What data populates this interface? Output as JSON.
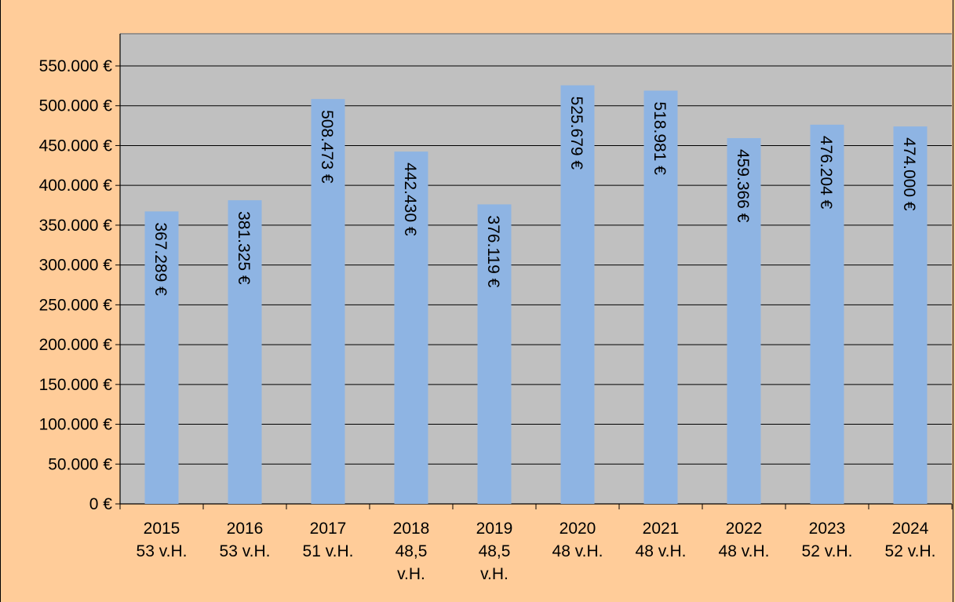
{
  "chart_data": {
    "type": "bar",
    "categories": [
      [
        "2015",
        "53 v.H."
      ],
      [
        "2016",
        "53 v.H."
      ],
      [
        "2017",
        "51 v.H."
      ],
      [
        "2018",
        "48,5",
        "v.H."
      ],
      [
        "2019",
        "48,5",
        "v.H."
      ],
      [
        "2020",
        "48 v.H."
      ],
      [
        "2021",
        "48 v.H."
      ],
      [
        "2022",
        "48 v.H."
      ],
      [
        "2023",
        "52 v.H."
      ],
      [
        "2024",
        "52 v.H."
      ]
    ],
    "values": [
      367289,
      381325,
      508473,
      442430,
      376119,
      525679,
      518981,
      459366,
      476204,
      474000
    ],
    "value_labels": [
      "367.289 €",
      "381.325 €",
      "508.473 €",
      "442.430 €",
      "376.119 €",
      "525.679 €",
      "518.981 €",
      "459.366 €",
      "476.204 €",
      "474.000 €"
    ],
    "ylim": [
      0,
      550000
    ],
    "yticks": [
      0,
      50000,
      100000,
      150000,
      200000,
      250000,
      300000,
      350000,
      400000,
      450000,
      500000,
      550000
    ],
    "ytick_labels": [
      "0 €",
      "50.000 €",
      "100.000 €",
      "150.000 €",
      "200.000 €",
      "250.000 €",
      "300.000 €",
      "350.000 €",
      "400.000 €",
      "450.000 €",
      "500.000 €",
      "550.000 €"
    ],
    "title": "",
    "xlabel": "",
    "ylabel": "",
    "grid": true,
    "legend": false,
    "colors": {
      "background": "#ffcc99",
      "plot_area": "#c0c0c0",
      "bar": "#8eb4e3",
      "gridline": "#000000"
    }
  }
}
